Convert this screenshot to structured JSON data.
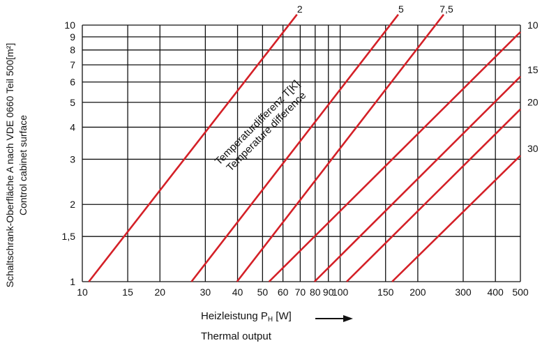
{
  "chart_data": {
    "type": "line",
    "xscale": "log",
    "yscale": "log",
    "xlim": [
      10,
      500
    ],
    "ylim": [
      1,
      10
    ],
    "x_ticks": [
      {
        "value": 10,
        "label": "10"
      },
      {
        "value": 15,
        "label": "15"
      },
      {
        "value": 20,
        "label": "20"
      },
      {
        "value": 30,
        "label": "30"
      },
      {
        "value": 40,
        "label": "40"
      },
      {
        "value": 50,
        "label": "50"
      },
      {
        "value": 60,
        "label": "60"
      },
      {
        "value": 70,
        "label": "70"
      },
      {
        "value": 80,
        "label": "80"
      },
      {
        "value": 90,
        "label": "90"
      },
      {
        "value": 100,
        "label": "100"
      },
      {
        "value": 150,
        "label": "150"
      },
      {
        "value": 200,
        "label": "200"
      },
      {
        "value": 300,
        "label": "300"
      },
      {
        "value": 400,
        "label": "400"
      },
      {
        "value": 500,
        "label": "500"
      }
    ],
    "y_ticks": [
      {
        "value": 1,
        "label": "1"
      },
      {
        "value": 1.5,
        "label": "1,5"
      },
      {
        "value": 2,
        "label": "2"
      },
      {
        "value": 3,
        "label": "3"
      },
      {
        "value": 4,
        "label": "4"
      },
      {
        "value": 5,
        "label": "5"
      },
      {
        "value": 6,
        "label": "6"
      },
      {
        "value": 7,
        "label": "7"
      },
      {
        "value": 8,
        "label": "8"
      },
      {
        "value": 9,
        "label": "9"
      },
      {
        "value": 10,
        "label": "10"
      }
    ],
    "ylabel_line1": "Schaltschrank-Oberfläche A nach VDE 0660 Teil 500[m²]",
    "ylabel_line2": "Control cabinet surface",
    "xlabel_line1": "Heizleistung P",
    "xlabel_sub": "H",
    "xlabel_unit": " [W]",
    "xlabel_line2": "Thermal output",
    "annotation_line1": "Temperaturdifferenz T[K]",
    "annotation_line2": "Temperature difference",
    "grid": true,
    "line_color": "#d42027",
    "series": [
      {
        "name": "2",
        "points": [
          [
            10.6,
            1
          ],
          [
            68,
            11
          ]
        ]
      },
      {
        "name": "5",
        "points": [
          [
            26.5,
            1
          ],
          [
            168,
            11
          ]
        ]
      },
      {
        "name": "7,5",
        "points": [
          [
            39.8,
            1
          ],
          [
            252,
            11
          ]
        ]
      },
      {
        "name": "10",
        "points": [
          [
            53,
            1
          ],
          [
            500,
            9.4
          ]
        ]
      },
      {
        "name": "15",
        "points": [
          [
            79.5,
            1
          ],
          [
            500,
            6.3
          ]
        ]
      },
      {
        "name": "20",
        "points": [
          [
            106,
            1
          ],
          [
            500,
            4.7
          ]
        ]
      },
      {
        "name": "30",
        "points": [
          [
            159,
            1
          ],
          [
            500,
            3.1
          ]
        ]
      }
    ]
  }
}
